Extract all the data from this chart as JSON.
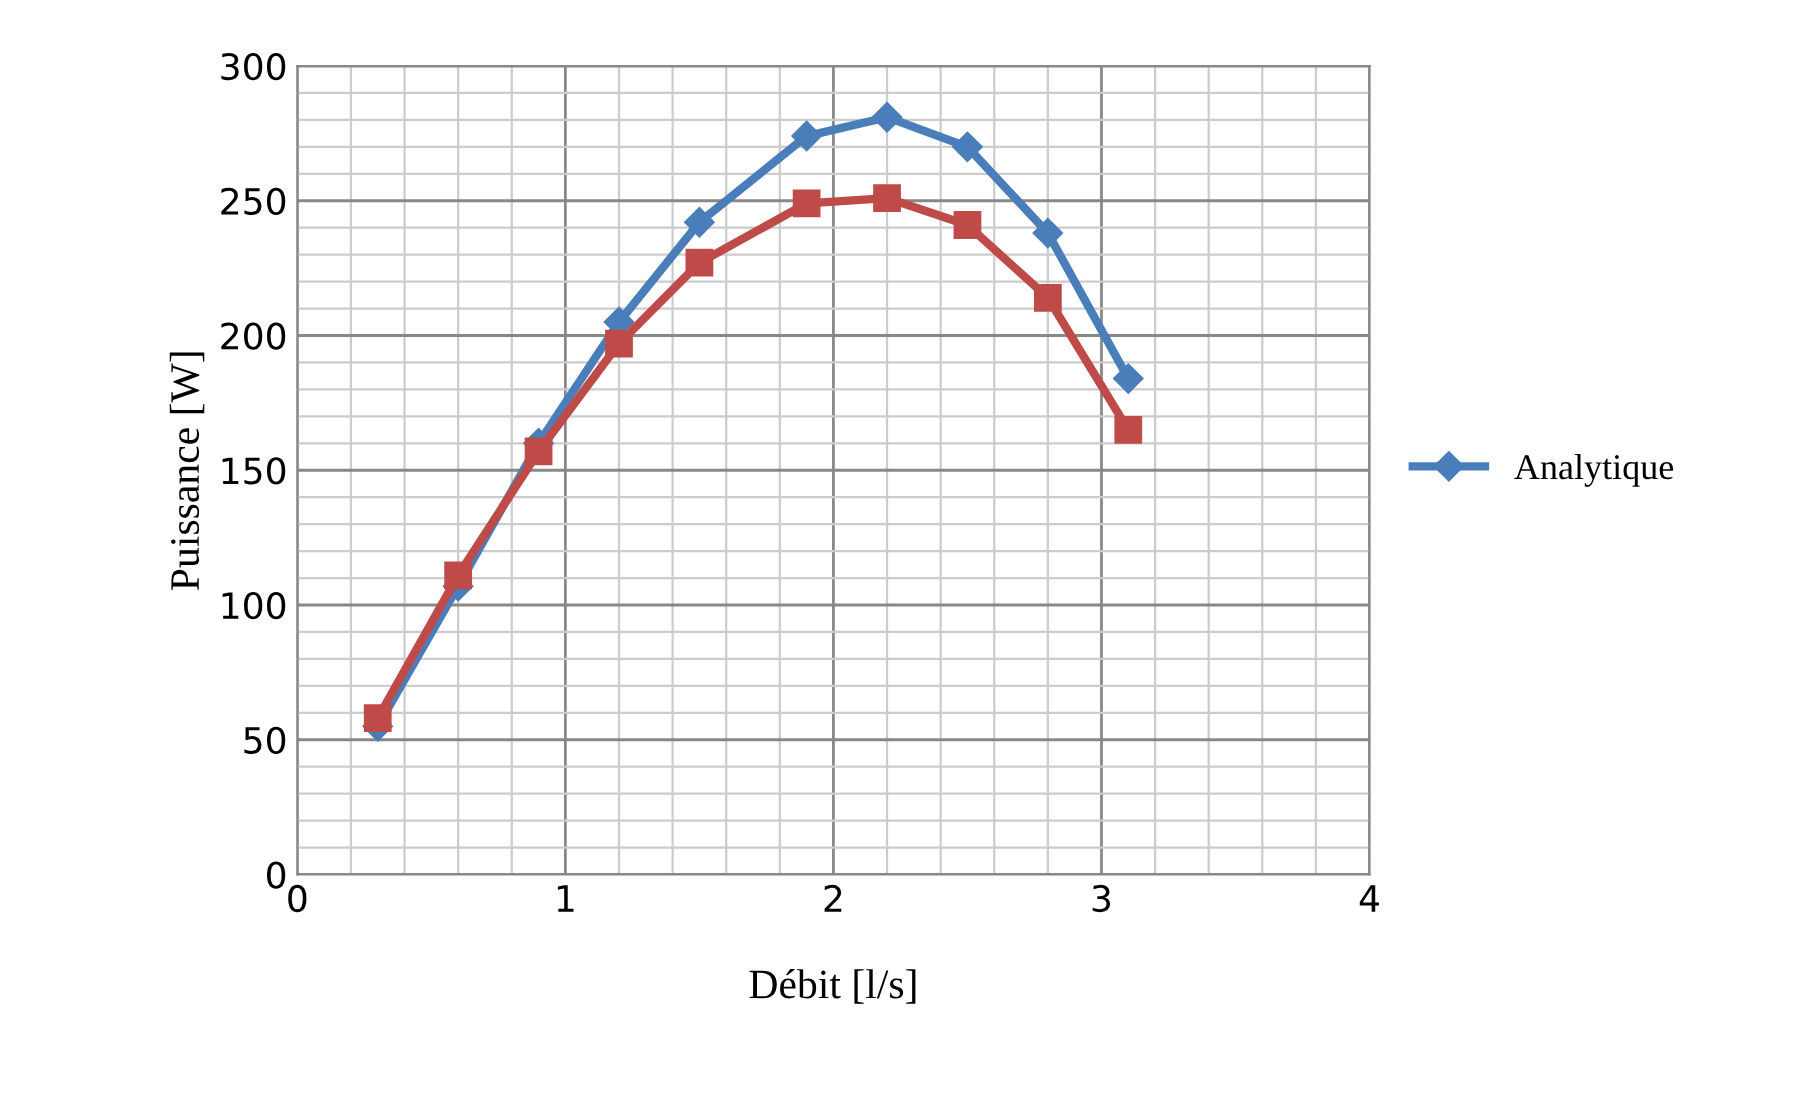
{
  "chart_data": {
    "type": "line",
    "xlabel": "Débit [l/s]",
    "ylabel": "Puissance [W]",
    "xlim": [
      0,
      4
    ],
    "xticks": [
      0,
      1,
      2,
      3,
      4
    ],
    "ylim": [
      0,
      300
    ],
    "yticks": [
      0,
      50,
      100,
      150,
      200,
      250,
      300
    ],
    "grid": true,
    "legend": "right",
    "line_style": "solid",
    "series": [
      {
        "name": "Analytique",
        "color": "#4a7ebb",
        "marker": "diamond",
        "x": [
          0.3,
          0.6,
          0.9,
          1.2,
          1.5,
          1.9,
          2.2,
          2.5,
          2.8,
          3.1
        ],
        "values": [
          55,
          107,
          160,
          205,
          242,
          274,
          281,
          270,
          238,
          184
        ]
      },
      {
        "color": "#be4b48",
        "marker": "square",
        "x": [
          0.3,
          0.6,
          0.9,
          1.2,
          1.5,
          1.9,
          2.2,
          2.5,
          2.8,
          3.1
        ],
        "values": [
          58,
          111,
          157,
          197,
          227,
          249,
          251,
          241,
          214,
          165
        ]
      }
    ]
  }
}
